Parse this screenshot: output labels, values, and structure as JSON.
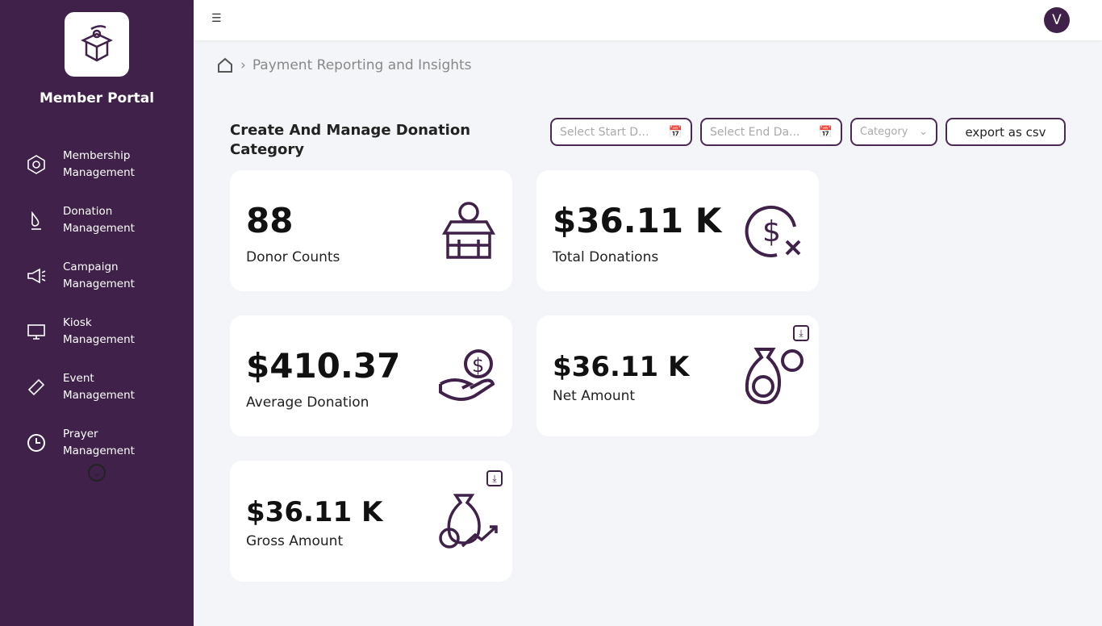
{
  "sidebar": {
    "brand": "Member Portal",
    "items": [
      {
        "label": "Membership Management",
        "icon": "badge-icon"
      },
      {
        "label": "Donation Management",
        "icon": "donation-hand-icon"
      },
      {
        "label": "Campaign Management",
        "icon": "megaphone-icon"
      },
      {
        "label": "Kiosk Management",
        "icon": "kiosk-icon"
      },
      {
        "label": "Event Management",
        "icon": "ticket-icon"
      },
      {
        "label": "Prayer Management",
        "icon": "clock-icon"
      }
    ]
  },
  "topbar": {
    "avatar": "V"
  },
  "breadcrumb": {
    "current": "Payment Reporting and Insights"
  },
  "page": {
    "title": "Create And Manage Donation Category"
  },
  "filters": {
    "start_placeholder": "Select Start D...",
    "end_placeholder": "Select End Da...",
    "category": "Category",
    "export": "export as csv"
  },
  "cards": [
    {
      "value": "88",
      "label": "Donor Counts"
    },
    {
      "value": "$36.11 K",
      "label": "Total Donations"
    },
    {
      "value": "$410.37",
      "label": "Average Donation"
    },
    {
      "value": "$36.11 K",
      "label": "Net Amount"
    },
    {
      "value": "$36.11 K",
      "label": "Gross Amount"
    }
  ],
  "colors": {
    "primary": "#3f2149",
    "background": "#f4f5f8"
  }
}
